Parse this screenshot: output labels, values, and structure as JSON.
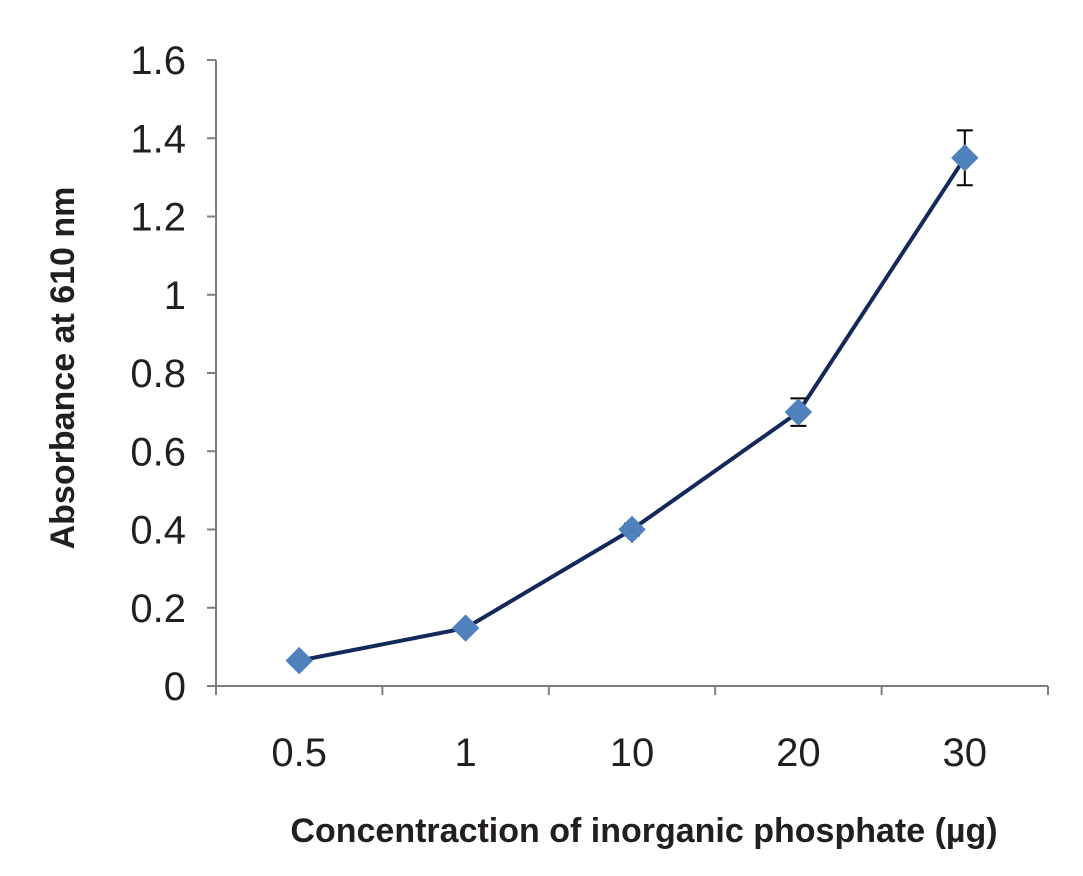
{
  "chart_data": {
    "type": "line",
    "title": "",
    "xlabel": "Concentraction of inorganic phosphate (µg)",
    "ylabel": "Absorbance at 610 nm",
    "categories": [
      "0.5",
      "1",
      "10",
      "20",
      "30"
    ],
    "series": [
      {
        "values": [
          0.065,
          0.148,
          0.4,
          0.7,
          1.35
        ],
        "errors": [
          0.0,
          0.0,
          0.015,
          0.035,
          0.07
        ],
        "line_color": "#13285b",
        "marker_color": "#4f81bd",
        "marker": "diamond"
      }
    ],
    "ylim": [
      0,
      1.6
    ],
    "yticks": [
      0,
      0.2,
      0.4,
      0.6,
      0.8,
      1,
      1.2,
      1.4,
      1.6
    ],
    "ytick_labels": [
      "0",
      "0.2",
      "0.4",
      "0.6",
      "0.8",
      "1",
      "1.2",
      "1.4",
      "1.6"
    ],
    "grid": false,
    "legend": "none"
  }
}
